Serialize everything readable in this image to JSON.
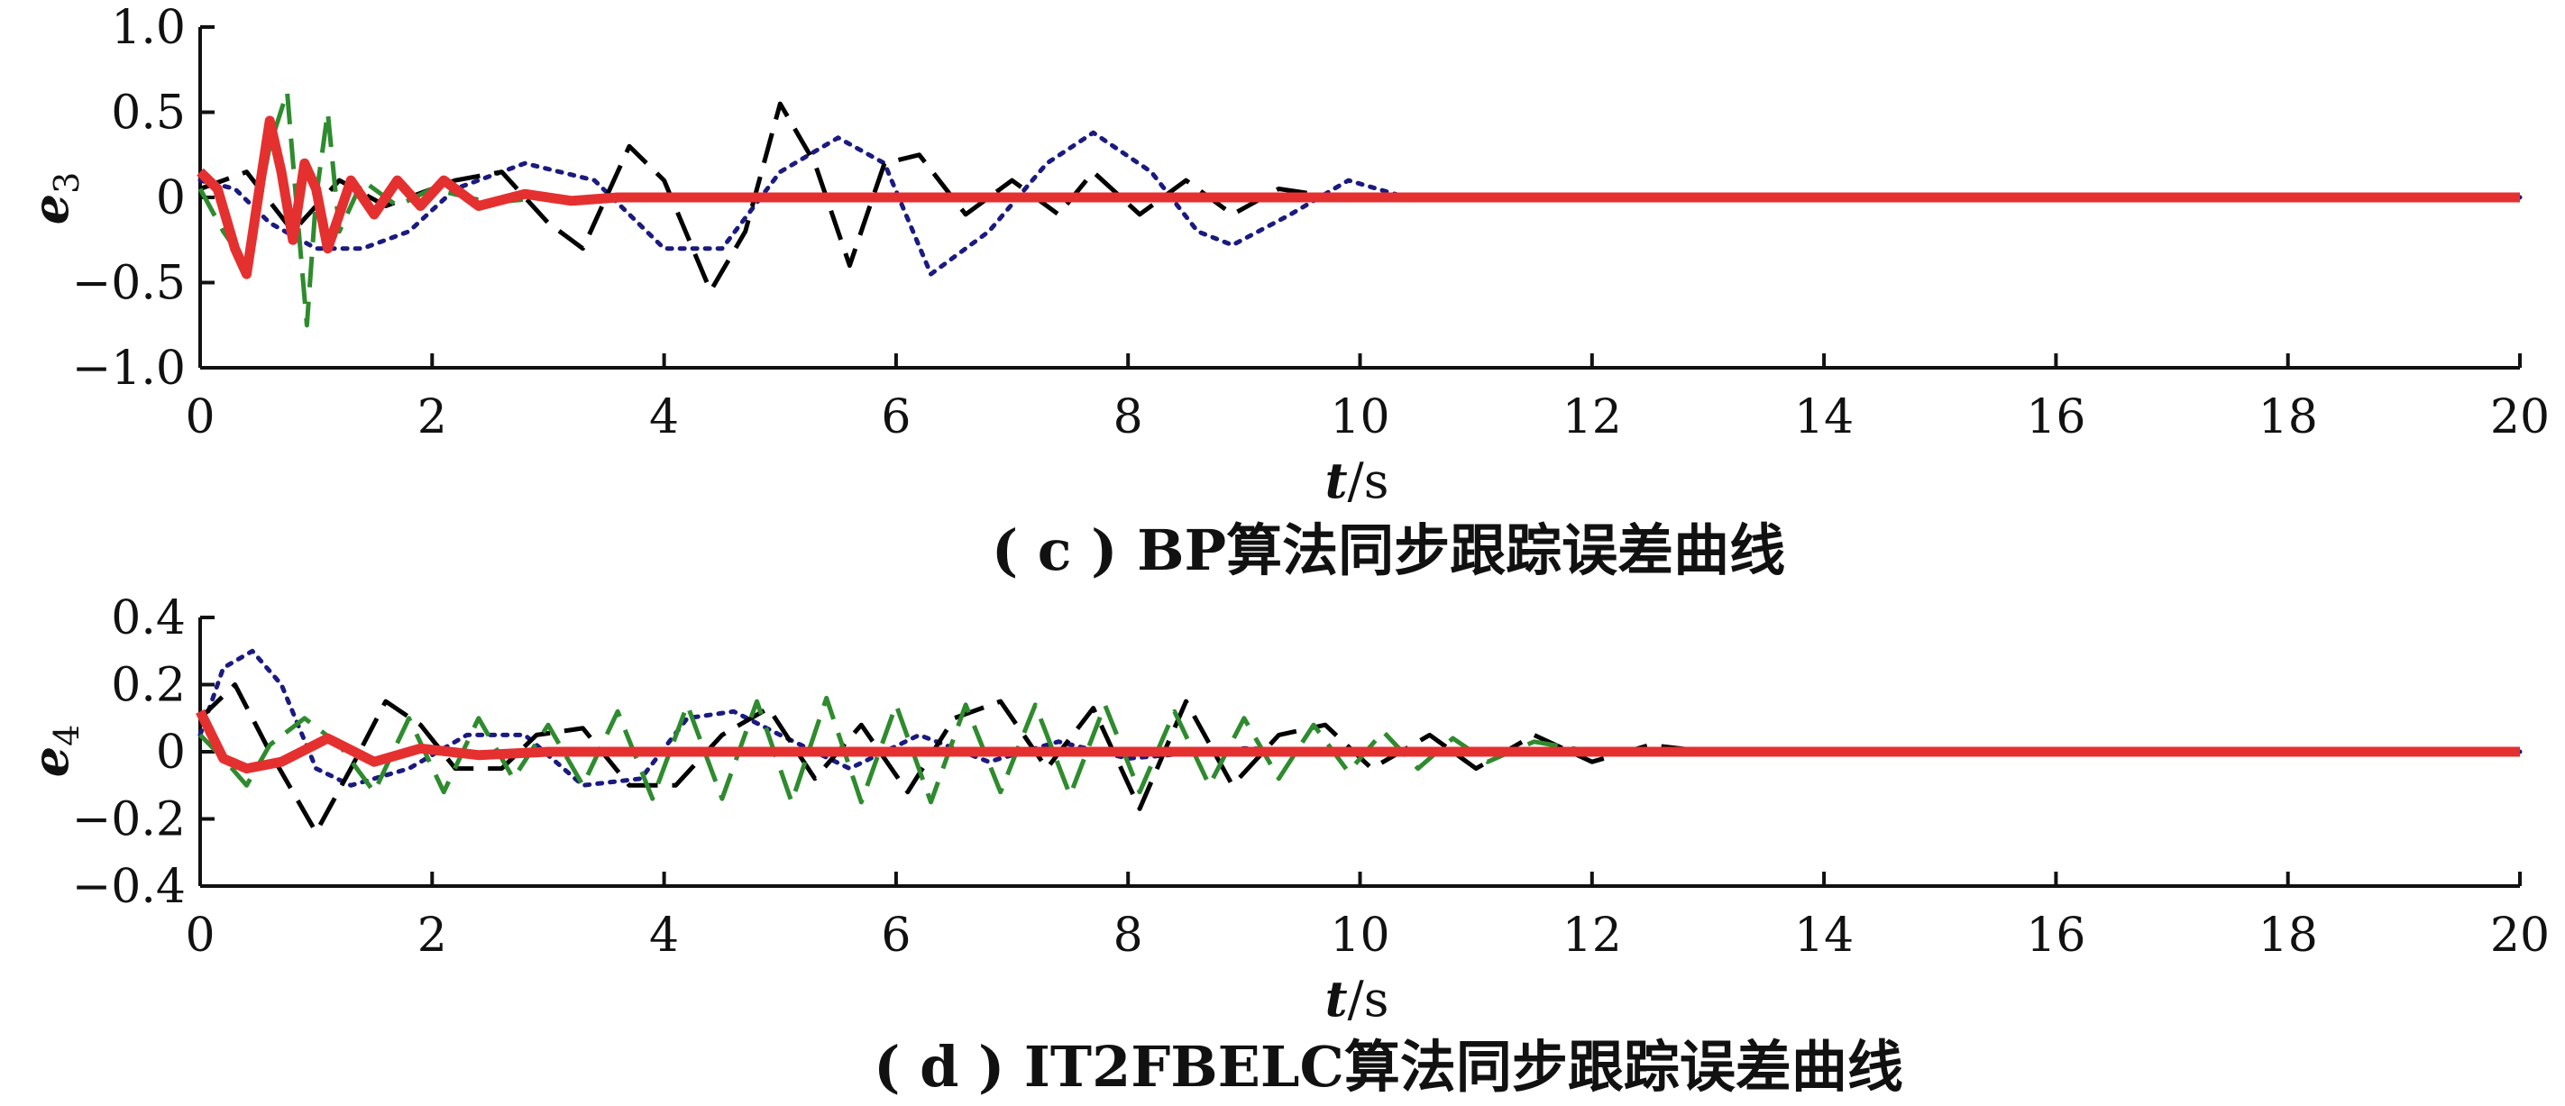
{
  "chart_data": [
    {
      "type": "line",
      "panel": "c",
      "caption": "( c ) BP算法同步跟踪误差曲线",
      "ylabel": "e",
      "ylabel_sub": "3",
      "xlabel_var": "t",
      "xlabel_unit": "/s",
      "xlim": [
        0,
        20
      ],
      "ylim": [
        -1.0,
        1.0
      ],
      "xticks": [
        "0",
        "2",
        "4",
        "6",
        "8",
        "10",
        "12",
        "14",
        "16",
        "18",
        "20"
      ],
      "yticks": [
        "1.0",
        "0.5",
        "0",
        "−0.5",
        "−1.0"
      ],
      "yticks_values": [
        1.0,
        0.5,
        0,
        -0.5,
        -1.0
      ],
      "grid": false,
      "series": [
        {
          "color": "#1a1a80",
          "style": "dotted",
          "points": [
            [
              0,
              0.1
            ],
            [
              0.3,
              0.05
            ],
            [
              0.6,
              -0.15
            ],
            [
              1.0,
              -0.3
            ],
            [
              1.4,
              -0.3
            ],
            [
              1.8,
              -0.2
            ],
            [
              2.2,
              0.05
            ],
            [
              2.8,
              0.2
            ],
            [
              3.4,
              0.1
            ],
            [
              4.0,
              -0.3
            ],
            [
              4.5,
              -0.3
            ],
            [
              5.0,
              0.15
            ],
            [
              5.5,
              0.35
            ],
            [
              5.9,
              0.2
            ],
            [
              6.3,
              -0.45
            ],
            [
              6.8,
              -0.2
            ],
            [
              7.3,
              0.2
            ],
            [
              7.7,
              0.38
            ],
            [
              8.2,
              0.15
            ],
            [
              8.6,
              -0.2
            ],
            [
              8.9,
              -0.28
            ],
            [
              9.4,
              -0.1
            ],
            [
              9.9,
              0.1
            ],
            [
              10.4,
              0
            ],
            [
              11,
              0
            ],
            [
              20,
              0
            ]
          ]
        },
        {
          "color": "#000000",
          "style": "dashed",
          "points": [
            [
              0,
              0.05
            ],
            [
              0.4,
              0.15
            ],
            [
              0.8,
              -0.2
            ],
            [
              1.2,
              0.1
            ],
            [
              1.6,
              -0.05
            ],
            [
              2.2,
              0.1
            ],
            [
              2.6,
              0.15
            ],
            [
              3.0,
              -0.15
            ],
            [
              3.3,
              -0.3
            ],
            [
              3.7,
              0.3
            ],
            [
              4.0,
              0.1
            ],
            [
              4.4,
              -0.55
            ],
            [
              4.7,
              -0.2
            ],
            [
              5.0,
              0.55
            ],
            [
              5.3,
              0.2
            ],
            [
              5.6,
              -0.4
            ],
            [
              5.9,
              0.2
            ],
            [
              6.2,
              0.25
            ],
            [
              6.6,
              -0.1
            ],
            [
              7.0,
              0.1
            ],
            [
              7.4,
              -0.1
            ],
            [
              7.7,
              0.15
            ],
            [
              8.1,
              -0.1
            ],
            [
              8.5,
              0.1
            ],
            [
              8.9,
              -0.1
            ],
            [
              9.3,
              0.05
            ],
            [
              9.8,
              0
            ],
            [
              20,
              0
            ]
          ]
        },
        {
          "color": "#2e8b2e",
          "style": "dashed",
          "points": [
            [
              0,
              0.05
            ],
            [
              0.2,
              -0.2
            ],
            [
              0.4,
              -0.4
            ],
            [
              0.6,
              0.3
            ],
            [
              0.75,
              0.62
            ],
            [
              0.85,
              -0.2
            ],
            [
              0.92,
              -0.75
            ],
            [
              1.0,
              0
            ],
            [
              1.1,
              0.5
            ],
            [
              1.2,
              -0.2
            ],
            [
              1.4,
              0.1
            ],
            [
              1.7,
              -0.05
            ],
            [
              2.0,
              0.05
            ],
            [
              2.5,
              -0.03
            ],
            [
              3.0,
              0
            ],
            [
              20,
              0
            ]
          ]
        },
        {
          "color": "#e53030",
          "style": "solid",
          "points": [
            [
              0,
              0.15
            ],
            [
              0.15,
              0.05
            ],
            [
              0.3,
              -0.3
            ],
            [
              0.4,
              -0.45
            ],
            [
              0.5,
              0
            ],
            [
              0.6,
              0.45
            ],
            [
              0.7,
              0.15
            ],
            [
              0.8,
              -0.25
            ],
            [
              0.9,
              0.2
            ],
            [
              1.0,
              0.05
            ],
            [
              1.1,
              -0.3
            ],
            [
              1.3,
              0.1
            ],
            [
              1.5,
              -0.1
            ],
            [
              1.7,
              0.1
            ],
            [
              1.9,
              -0.05
            ],
            [
              2.1,
              0.1
            ],
            [
              2.4,
              -0.05
            ],
            [
              2.8,
              0.02
            ],
            [
              3.2,
              -0.02
            ],
            [
              3.6,
              0
            ],
            [
              20,
              0
            ]
          ]
        }
      ]
    },
    {
      "type": "line",
      "panel": "d",
      "caption": "( d ) IT2FBELC算法同步跟踪误差曲线",
      "ylabel": "e",
      "ylabel_sub": "4",
      "xlabel_var": "t",
      "xlabel_unit": "/s",
      "xlim": [
        0,
        20
      ],
      "ylim": [
        -0.4,
        0.4
      ],
      "xticks": [
        "0",
        "2",
        "4",
        "6",
        "8",
        "10",
        "12",
        "14",
        "16",
        "18",
        "20"
      ],
      "yticks": [
        "0.4",
        "0.2",
        "0",
        "−0.2",
        "−0.4"
      ],
      "yticks_values": [
        0.4,
        0.2,
        0,
        -0.2,
        -0.4
      ],
      "grid": false,
      "series": [
        {
          "color": "#1a1a80",
          "style": "dotted",
          "points": [
            [
              0,
              0.05
            ],
            [
              0.2,
              0.25
            ],
            [
              0.45,
              0.3
            ],
            [
              0.7,
              0.2
            ],
            [
              1.0,
              -0.05
            ],
            [
              1.3,
              -0.1
            ],
            [
              1.8,
              -0.05
            ],
            [
              2.3,
              0.05
            ],
            [
              2.8,
              0.05
            ],
            [
              3.3,
              -0.1
            ],
            [
              3.8,
              -0.08
            ],
            [
              4.2,
              0.1
            ],
            [
              4.6,
              0.12
            ],
            [
              5.0,
              0.05
            ],
            [
              5.6,
              -0.05
            ],
            [
              6.2,
              0.05
            ],
            [
              6.8,
              -0.03
            ],
            [
              7.4,
              0.03
            ],
            [
              8.0,
              -0.02
            ],
            [
              9,
              0.01
            ],
            [
              10,
              0
            ],
            [
              20,
              0
            ]
          ]
        },
        {
          "color": "#000000",
          "style": "dashed",
          "points": [
            [
              0,
              0.1
            ],
            [
              0.3,
              0.2
            ],
            [
              0.6,
              0
            ],
            [
              1.0,
              -0.24
            ],
            [
              1.3,
              -0.05
            ],
            [
              1.6,
              0.15
            ],
            [
              1.9,
              0.08
            ],
            [
              2.2,
              -0.05
            ],
            [
              2.6,
              -0.05
            ],
            [
              2.9,
              0.05
            ],
            [
              3.3,
              0.07
            ],
            [
              3.7,
              -0.1
            ],
            [
              4.1,
              -0.1
            ],
            [
              4.5,
              0.05
            ],
            [
              4.9,
              0.13
            ],
            [
              5.3,
              -0.08
            ],
            [
              5.7,
              0.08
            ],
            [
              6.1,
              -0.12
            ],
            [
              6.5,
              0.1
            ],
            [
              6.9,
              0.15
            ],
            [
              7.3,
              -0.05
            ],
            [
              7.7,
              0.13
            ],
            [
              8.1,
              -0.17
            ],
            [
              8.5,
              0.15
            ],
            [
              8.9,
              -0.1
            ],
            [
              9.3,
              0.05
            ],
            [
              9.7,
              0.08
            ],
            [
              10.1,
              -0.05
            ],
            [
              10.6,
              0.05
            ],
            [
              11.0,
              -0.05
            ],
            [
              11.5,
              0.05
            ],
            [
              12.0,
              -0.03
            ],
            [
              12.5,
              0.02
            ],
            [
              13,
              0
            ],
            [
              20,
              0
            ]
          ]
        },
        {
          "color": "#2e8b2e",
          "style": "dashed",
          "points": [
            [
              0,
              0.05
            ],
            [
              0.2,
              -0.02
            ],
            [
              0.4,
              -0.1
            ],
            [
              0.6,
              0.02
            ],
            [
              0.9,
              0.1
            ],
            [
              1.2,
              0.02
            ],
            [
              1.5,
              -0.12
            ],
            [
              1.8,
              0.1
            ],
            [
              2.1,
              -0.12
            ],
            [
              2.4,
              0.1
            ],
            [
              2.7,
              -0.08
            ],
            [
              3.0,
              0.08
            ],
            [
              3.3,
              -0.1
            ],
            [
              3.6,
              0.12
            ],
            [
              3.9,
              -0.14
            ],
            [
              4.2,
              0.14
            ],
            [
              4.5,
              -0.14
            ],
            [
              4.8,
              0.15
            ],
            [
              5.1,
              -0.15
            ],
            [
              5.4,
              0.16
            ],
            [
              5.7,
              -0.15
            ],
            [
              6.0,
              0.14
            ],
            [
              6.3,
              -0.15
            ],
            [
              6.6,
              0.14
            ],
            [
              6.9,
              -0.12
            ],
            [
              7.2,
              0.14
            ],
            [
              7.5,
              -0.13
            ],
            [
              7.8,
              0.14
            ],
            [
              8.1,
              -0.12
            ],
            [
              8.4,
              0.12
            ],
            [
              8.7,
              -0.1
            ],
            [
              9.0,
              0.1
            ],
            [
              9.3,
              -0.08
            ],
            [
              9.6,
              0.08
            ],
            [
              9.9,
              -0.06
            ],
            [
              10.2,
              0.06
            ],
            [
              10.5,
              -0.05
            ],
            [
              10.8,
              0.04
            ],
            [
              11.1,
              -0.03
            ],
            [
              11.5,
              0.03
            ],
            [
              12,
              0
            ],
            [
              20,
              0
            ]
          ]
        },
        {
          "color": "#e53030",
          "style": "solid",
          "points": [
            [
              0,
              0.12
            ],
            [
              0.2,
              -0.02
            ],
            [
              0.4,
              -0.05
            ],
            [
              0.7,
              -0.03
            ],
            [
              1.1,
              0.04
            ],
            [
              1.5,
              -0.03
            ],
            [
              1.9,
              0.01
            ],
            [
              2.4,
              -0.01
            ],
            [
              3.0,
              0
            ],
            [
              20,
              0
            ]
          ]
        }
      ]
    }
  ]
}
